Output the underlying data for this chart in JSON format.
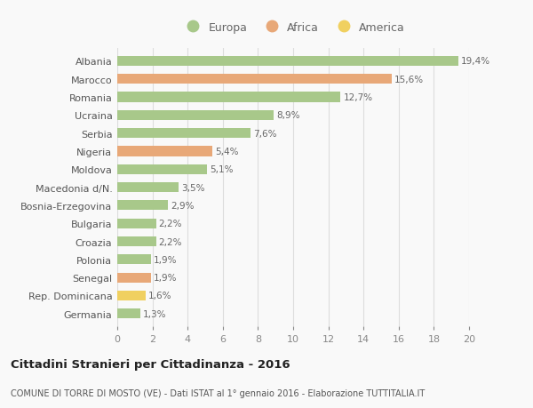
{
  "countries": [
    "Albania",
    "Marocco",
    "Romania",
    "Ucraina",
    "Serbia",
    "Nigeria",
    "Moldova",
    "Macedonia d/N.",
    "Bosnia-Erzegovina",
    "Bulgaria",
    "Croazia",
    "Polonia",
    "Senegal",
    "Rep. Dominicana",
    "Germania"
  ],
  "values": [
    19.4,
    15.6,
    12.7,
    8.9,
    7.6,
    5.4,
    5.1,
    3.5,
    2.9,
    2.2,
    2.2,
    1.9,
    1.9,
    1.6,
    1.3
  ],
  "labels": [
    "19,4%",
    "15,6%",
    "12,7%",
    "8,9%",
    "7,6%",
    "5,4%",
    "5,1%",
    "3,5%",
    "2,9%",
    "2,2%",
    "2,2%",
    "1,9%",
    "1,9%",
    "1,6%",
    "1,3%"
  ],
  "continents": [
    "Europa",
    "Africa",
    "Europa",
    "Europa",
    "Europa",
    "Africa",
    "Europa",
    "Europa",
    "Europa",
    "Europa",
    "Europa",
    "Europa",
    "Africa",
    "America",
    "Europa"
  ],
  "colors": {
    "Europa": "#a8c88a",
    "Africa": "#e8a878",
    "America": "#f0d060"
  },
  "title": "Cittadini Stranieri per Cittadinanza - 2016",
  "subtitle": "COMUNE DI TORRE DI MOSTO (VE) - Dati ISTAT al 1° gennaio 2016 - Elaborazione TUTTITALIA.IT",
  "xlim": [
    0,
    20
  ],
  "xticks": [
    0,
    2,
    4,
    6,
    8,
    10,
    12,
    14,
    16,
    18,
    20
  ],
  "background_color": "#f9f9f9",
  "grid_color": "#dddddd",
  "bar_height": 0.55
}
